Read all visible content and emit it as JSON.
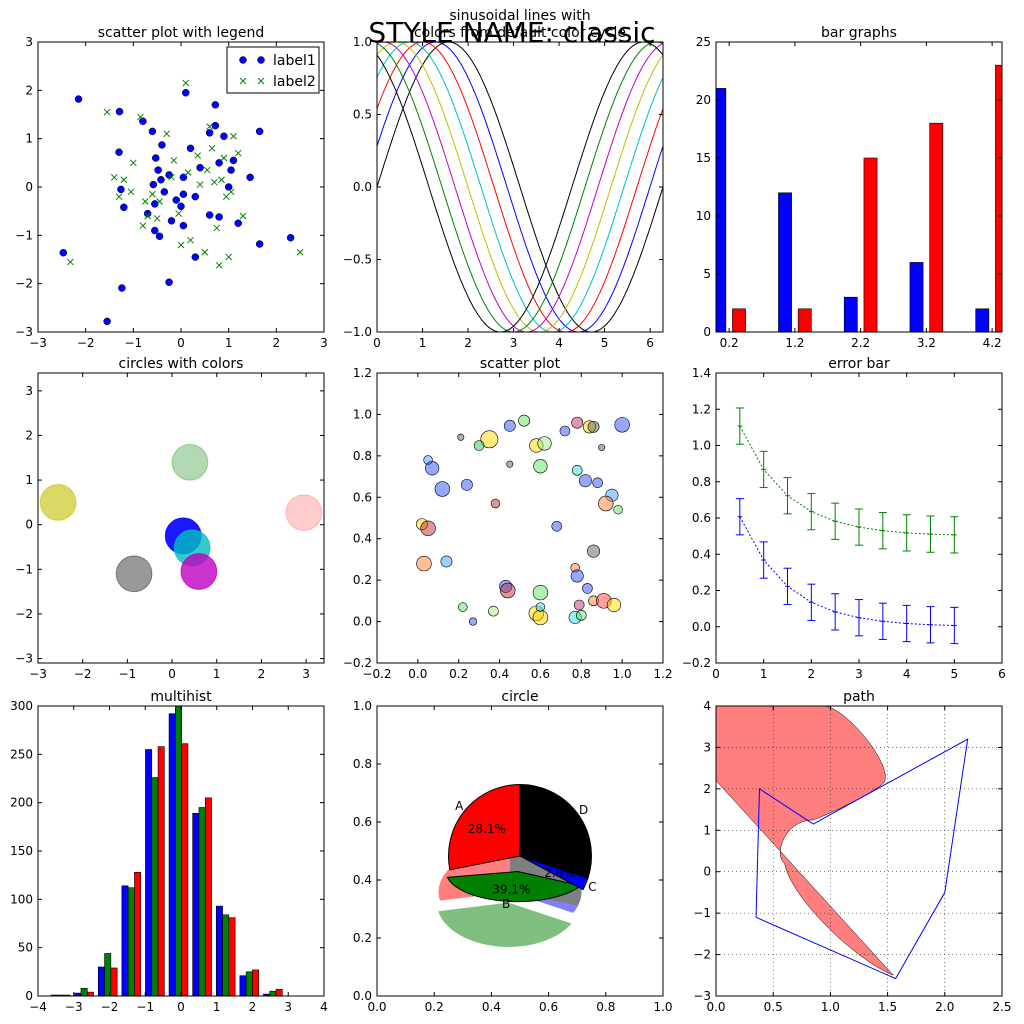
{
  "suptitle": "STYLE NAME: classic",
  "chart_data": [
    {
      "type": "scatter",
      "title": "scatter plot with legend",
      "xlim": [
        -3,
        3
      ],
      "ylim": [
        -3,
        3
      ],
      "xticks": [
        -3,
        -2,
        -1,
        0,
        1,
        2,
        3
      ],
      "yticks": [
        -3,
        -2,
        -1,
        0,
        1,
        2,
        3
      ],
      "legend_placement": "top-right",
      "series": [
        {
          "name": "label1",
          "marker": "circle",
          "color": "#0000ff",
          "points": [
            [
              -2.15,
              1.82
            ],
            [
              -2.47,
              -1.36
            ],
            [
              -1.55,
              -2.78
            ],
            [
              -1.29,
              1.56
            ],
            [
              -1.26,
              -0.05
            ],
            [
              -1.24,
              -2.09
            ],
            [
              -1.2,
              -0.42
            ],
            [
              -1.3,
              0.72
            ],
            [
              -0.8,
              1.36
            ],
            [
              -0.6,
              1.15
            ],
            [
              -0.4,
              0.87
            ],
            [
              -0.53,
              0.6
            ],
            [
              -0.48,
              0.35
            ],
            [
              -0.42,
              0.15
            ],
            [
              -0.58,
              0.05
            ],
            [
              -0.35,
              -0.1
            ],
            [
              -0.7,
              -0.55
            ],
            [
              -0.55,
              -0.9
            ],
            [
              -0.45,
              -1.02
            ],
            [
              -0.55,
              -0.35
            ],
            [
              -0.2,
              -0.7
            ],
            [
              -0.25,
              0.25
            ],
            [
              -0.1,
              -0.27
            ],
            [
              0.0,
              -0.4
            ],
            [
              0.05,
              0.2
            ],
            [
              0.05,
              -0.15
            ],
            [
              0.1,
              1.95
            ],
            [
              0.2,
              0.8
            ],
            [
              0.3,
              -0.2
            ],
            [
              0.3,
              -1.45
            ],
            [
              0.4,
              0.4
            ],
            [
              0.6,
              1.12
            ],
            [
              0.6,
              -0.58
            ],
            [
              0.72,
              1.7
            ],
            [
              0.72,
              1.27
            ],
            [
              0.8,
              0.5
            ],
            [
              0.8,
              -0.62
            ],
            [
              0.9,
              1.05
            ],
            [
              1.0,
              0.0
            ],
            [
              1.05,
              0.35
            ],
            [
              1.1,
              0.55
            ],
            [
              1.2,
              -0.75
            ],
            [
              1.45,
              0.2
            ],
            [
              1.65,
              1.15
            ],
            [
              1.65,
              -1.18
            ],
            [
              2.3,
              -1.05
            ],
            [
              -0.25,
              -1.97
            ],
            [
              0.05,
              -0.8
            ]
          ]
        },
        {
          "name": "label2",
          "marker": "x",
          "color": "#008000",
          "points": [
            [
              -2.32,
              -1.55
            ],
            [
              -1.55,
              1.55
            ],
            [
              -1.4,
              0.2
            ],
            [
              -1.3,
              -0.2
            ],
            [
              -1.2,
              0.15
            ],
            [
              -1.05,
              -0.1
            ],
            [
              -1.0,
              0.5
            ],
            [
              -0.85,
              1.45
            ],
            [
              -0.8,
              -0.8
            ],
            [
              -0.75,
              -0.3
            ],
            [
              -0.6,
              -0.15
            ],
            [
              -0.5,
              -0.65
            ],
            [
              -0.45,
              -0.3
            ],
            [
              -0.3,
              1.1
            ],
            [
              -0.2,
              0.2
            ],
            [
              -0.15,
              0.55
            ],
            [
              -0.05,
              -0.55
            ],
            [
              0.1,
              2.15
            ],
            [
              0.15,
              0.3
            ],
            [
              0.2,
              -1.1
            ],
            [
              0.35,
              0.65
            ],
            [
              0.4,
              0.05
            ],
            [
              0.55,
              0.35
            ],
            [
              0.5,
              -1.35
            ],
            [
              0.6,
              1.25
            ],
            [
              0.65,
              0.8
            ],
            [
              0.7,
              0.1
            ],
            [
              0.75,
              -0.85
            ],
            [
              0.8,
              -1.62
            ],
            [
              0.9,
              0.6
            ],
            [
              0.95,
              -0.2
            ],
            [
              1.0,
              -1.45
            ],
            [
              1.05,
              -0.1
            ],
            [
              1.1,
              1.05
            ],
            [
              1.2,
              0.7
            ],
            [
              1.3,
              -0.6
            ],
            [
              2.5,
              -1.35
            ],
            [
              -0.7,
              -0.6
            ],
            [
              0.0,
              -1.2
            ],
            [
              0.85,
              0.15
            ]
          ]
        }
      ]
    },
    {
      "type": "line",
      "title": "sinusoidal lines with colors from default color cycle",
      "xlim": [
        0,
        6.283
      ],
      "ylim": [
        -1.0,
        1.0
      ],
      "xticks": [
        0,
        1,
        2,
        3,
        4,
        5,
        6
      ],
      "yticks": [
        -1.0,
        -0.5,
        0.0,
        0.5,
        1.0
      ],
      "series": [
        {
          "function": "sin(x + 0)",
          "color": "#000000"
        },
        {
          "function": "sin(x + 0.286)",
          "color": "#0000ff"
        },
        {
          "function": "sin(x + 0.571)",
          "color": "#ff0000"
        },
        {
          "function": "sin(x + 0.857)",
          "color": "#00bfbf"
        },
        {
          "function": "sin(x + 1.143)",
          "color": "#bfbf00"
        },
        {
          "function": "sin(x + 1.428)",
          "color": "#bf00bf"
        },
        {
          "function": "sin(x + 1.714)",
          "color": "#008000"
        },
        {
          "function": "sin(x + 2.0)",
          "color": "#000000"
        }
      ]
    },
    {
      "type": "bar",
      "title": "bar graphs",
      "xlim": [
        0,
        4.35
      ],
      "ylim": [
        0,
        25
      ],
      "xticks": [
        0.2,
        1.2,
        2.2,
        3.2,
        4.2
      ],
      "yticks": [
        0,
        5,
        10,
        15,
        20,
        25
      ],
      "x": [
        0,
        1,
        2,
        3,
        4
      ],
      "series": [
        {
          "color": "#0000ff",
          "values": [
            21,
            12,
            3,
            6,
            2
          ]
        },
        {
          "color": "#ff0000",
          "values": [
            2,
            2,
            15,
            18,
            23
          ]
        }
      ]
    },
    {
      "type": "scatter",
      "title": "circles with colors",
      "xlim": [
        -3,
        3.4
      ],
      "ylim": [
        -3.1,
        3.4
      ],
      "xticks": [
        -3,
        -2,
        -1,
        0,
        1,
        2,
        3
      ],
      "yticks": [
        -3,
        -2,
        -1,
        0,
        1,
        2,
        3
      ],
      "circles": [
        {
          "x": -2.55,
          "y": 0.5,
          "r": 0.4,
          "color": "#bfbf00",
          "alpha": 0.6
        },
        {
          "x": 0.4,
          "y": 1.4,
          "r": 0.4,
          "color": "#008000",
          "alpha": 0.3
        },
        {
          "x": 2.95,
          "y": 0.27,
          "r": 0.4,
          "color": "#ff0000",
          "alpha": 0.2
        },
        {
          "x": 0.25,
          "y": -0.25,
          "r": 0.4,
          "color": "#0000ff",
          "alpha": 0.9
        },
        {
          "x": 0.45,
          "y": -0.52,
          "r": 0.4,
          "color": "#00bfbf",
          "alpha": 0.8
        },
        {
          "x": -0.85,
          "y": -1.1,
          "r": 0.4,
          "color": "#000000",
          "alpha": 0.4
        },
        {
          "x": 0.6,
          "y": -1.05,
          "r": 0.4,
          "color": "#bf00bf",
          "alpha": 0.8
        }
      ]
    },
    {
      "type": "scatter",
      "title": "scatter plot",
      "xlim": [
        -0.2,
        1.2
      ],
      "ylim": [
        -0.2,
        1.2
      ],
      "xticks": [
        -0.2,
        0.0,
        0.2,
        0.4,
        0.6,
        0.8,
        1.0,
        1.2
      ],
      "yticks": [
        -0.2,
        0.0,
        0.2,
        0.4,
        0.6,
        0.8,
        1.0,
        1.2
      ],
      "points": [
        [
          0.35,
          0.88,
          0.55,
          "#ffd700"
        ],
        [
          0.45,
          0.945,
          0.3,
          "#3050ff"
        ],
        [
          0.52,
          0.97,
          0.3,
          "#60e060"
        ],
        [
          0.58,
          0.85,
          0.4,
          "#ffd700"
        ],
        [
          0.62,
          0.86,
          0.4,
          "#a0f080"
        ],
        [
          0.72,
          0.92,
          0.25,
          "#3050ff"
        ],
        [
          0.78,
          0.96,
          0.3,
          "#c03070"
        ],
        [
          0.84,
          0.94,
          0.35,
          "#ffd700"
        ],
        [
          0.86,
          0.94,
          0.3,
          "#606060"
        ],
        [
          1.0,
          0.95,
          0.45,
          "#3050ff"
        ],
        [
          0.3,
          0.85,
          0.25,
          "#30c060"
        ],
        [
          0.21,
          0.89,
          0.1,
          "#606060"
        ],
        [
          0.45,
          0.76,
          0.1,
          "#606060"
        ],
        [
          0.6,
          0.75,
          0.4,
          "#60e060"
        ],
        [
          0.05,
          0.78,
          0.2,
          "#40a0ff"
        ],
        [
          0.07,
          0.74,
          0.4,
          "#3050ff"
        ],
        [
          0.12,
          0.64,
          0.45,
          "#3050ff"
        ],
        [
          0.24,
          0.66,
          0.3,
          "#3050ff"
        ],
        [
          0.38,
          0.57,
          0.2,
          "#c03030"
        ],
        [
          0.78,
          0.73,
          0.25,
          "#30e0e0"
        ],
        [
          0.82,
          0.68,
          0.35,
          "#3050ff"
        ],
        [
          0.88,
          0.67,
          0.25,
          "#3050ff"
        ],
        [
          0.9,
          0.84,
          0.1,
          "#606060"
        ],
        [
          0.95,
          0.61,
          0.35,
          "#40a0ff"
        ],
        [
          0.92,
          0.57,
          0.45,
          "#ff8030"
        ],
        [
          0.98,
          0.54,
          0.2,
          "#60e060"
        ],
        [
          0.68,
          0.46,
          0.25,
          "#3050ff"
        ],
        [
          0.02,
          0.47,
          0.3,
          "#ffd700"
        ],
        [
          0.05,
          0.45,
          0.45,
          "#c03030"
        ],
        [
          0.03,
          0.28,
          0.45,
          "#ff8030"
        ],
        [
          0.14,
          0.29,
          0.3,
          "#40a0ff"
        ],
        [
          0.77,
          0.26,
          0.2,
          "#ff8030"
        ],
        [
          0.78,
          0.22,
          0.35,
          "#3050ff"
        ],
        [
          0.86,
          0.34,
          0.35,
          "#606060"
        ],
        [
          0.22,
          0.07,
          0.2,
          "#60e060"
        ],
        [
          0.37,
          0.05,
          0.25,
          "#a0f080"
        ],
        [
          0.27,
          0.0,
          0.15,
          "#3050ff"
        ],
        [
          0.43,
          0.17,
          0.35,
          "#3050ff"
        ],
        [
          0.44,
          0.15,
          0.45,
          "#c03030"
        ],
        [
          0.6,
          0.14,
          0.45,
          "#60e060"
        ],
        [
          0.58,
          0.04,
          0.45,
          "#ffd700"
        ],
        [
          0.6,
          0.02,
          0.45,
          "#ffd700"
        ],
        [
          0.6,
          0.07,
          0.2,
          "#30e0e0"
        ],
        [
          0.77,
          0.02,
          0.35,
          "#30e0e0"
        ],
        [
          0.8,
          0.03,
          0.25,
          "#60e060"
        ],
        [
          0.79,
          0.08,
          0.25,
          "#c03070"
        ],
        [
          0.86,
          0.1,
          0.25,
          "#ff8030"
        ],
        [
          0.91,
          0.1,
          0.45,
          "#ff4040"
        ],
        [
          0.96,
          0.08,
          0.4,
          "#ffd700"
        ],
        [
          0.83,
          0.16,
          0.25,
          "#3050ff"
        ]
      ]
    },
    {
      "type": "line",
      "title": "error bar",
      "xlim": [
        0,
        6
      ],
      "ylim": [
        -0.2,
        1.4
      ],
      "xticks": [
        0,
        1,
        2,
        3,
        4,
        5,
        6
      ],
      "yticks": [
        -0.2,
        0.0,
        0.2,
        0.4,
        0.6,
        0.8,
        1.0,
        1.2,
        1.4
      ],
      "x": [
        0.5,
        1.0,
        1.5,
        2.0,
        2.5,
        3.0,
        3.5,
        4.0,
        4.5,
        5.0
      ],
      "series": [
        {
          "color": "#008000",
          "values": [
            1.107,
            0.868,
            0.723,
            0.635,
            0.582,
            0.55,
            0.53,
            0.518,
            0.511,
            0.507
          ],
          "yerr": 0.1,
          "xerr": 0.05
        },
        {
          "color": "#0000ff",
          "values": [
            0.607,
            0.368,
            0.223,
            0.135,
            0.082,
            0.05,
            0.03,
            0.018,
            0.011,
            0.007
          ],
          "yerr": 0.1,
          "xerr": 0.05
        }
      ]
    },
    {
      "type": "bar",
      "title": "multihist",
      "xlim": [
        -4,
        4
      ],
      "ylim": [
        0,
        300
      ],
      "xticks": [
        -4,
        -3,
        -2,
        -1,
        0,
        1,
        2,
        3,
        4
      ],
      "yticks": [
        0,
        50,
        100,
        150,
        200,
        250,
        300
      ],
      "bin_edges": [
        -3.7,
        -3.04,
        -2.38,
        -1.72,
        -1.06,
        -0.4,
        0.26,
        0.92,
        1.58,
        2.24,
        2.9,
        3.56
      ],
      "series": [
        {
          "color": "#0000ff",
          "values": [
            1,
            3,
            30,
            114,
            255,
            292,
            189,
            93,
            21,
            2,
            0
          ]
        },
        {
          "color": "#008000",
          "values": [
            1,
            8,
            44,
            112,
            226,
            300,
            195,
            84,
            25,
            5,
            0
          ]
        },
        {
          "color": "#ff0000",
          "values": [
            1,
            4,
            29,
            128,
            258,
            261,
            205,
            81,
            27,
            7,
            0
          ]
        }
      ]
    },
    {
      "type": "pie",
      "title": "circle",
      "xlim": [
        0.0,
        1.0
      ],
      "ylim": [
        0.0,
        1.0
      ],
      "xticks": [
        0.0,
        0.2,
        0.4,
        0.6,
        0.8,
        1.0
      ],
      "yticks": [
        0.0,
        0.2,
        0.4,
        0.6,
        0.8,
        1.0
      ],
      "slices": [
        {
          "label": "A",
          "value": 28.1,
          "pct": "28.1%",
          "color": "#ff0000"
        },
        {
          "label": "B",
          "value": 39.1,
          "pct": "39.1%",
          "color": "#008000",
          "explode": 0.1
        },
        {
          "label": "C",
          "value": 2.8,
          "pct": "2.8%",
          "color": "#0000ff"
        },
        {
          "label": "D",
          "value": 30.0,
          "pct": "",
          "color": "#000000"
        }
      ]
    },
    {
      "type": "area",
      "title": "path",
      "xlim": [
        0.0,
        2.5
      ],
      "ylim": [
        -3,
        4
      ],
      "xticks": [
        0.0,
        0.5,
        1.0,
        1.5,
        2.0,
        2.5
      ],
      "yticks": [
        -3,
        -2,
        -1,
        0,
        1,
        2,
        3,
        4
      ],
      "grid": true,
      "polyline": [
        [
          0.35,
          -1.1
        ],
        [
          0.38,
          2.0
        ],
        [
          0.85,
          1.15
        ],
        [
          2.2,
          3.2
        ],
        [
          2.0,
          -0.5
        ],
        [
          1.57,
          -2.58
        ],
        [
          0.35,
          -1.1
        ]
      ]
    }
  ]
}
